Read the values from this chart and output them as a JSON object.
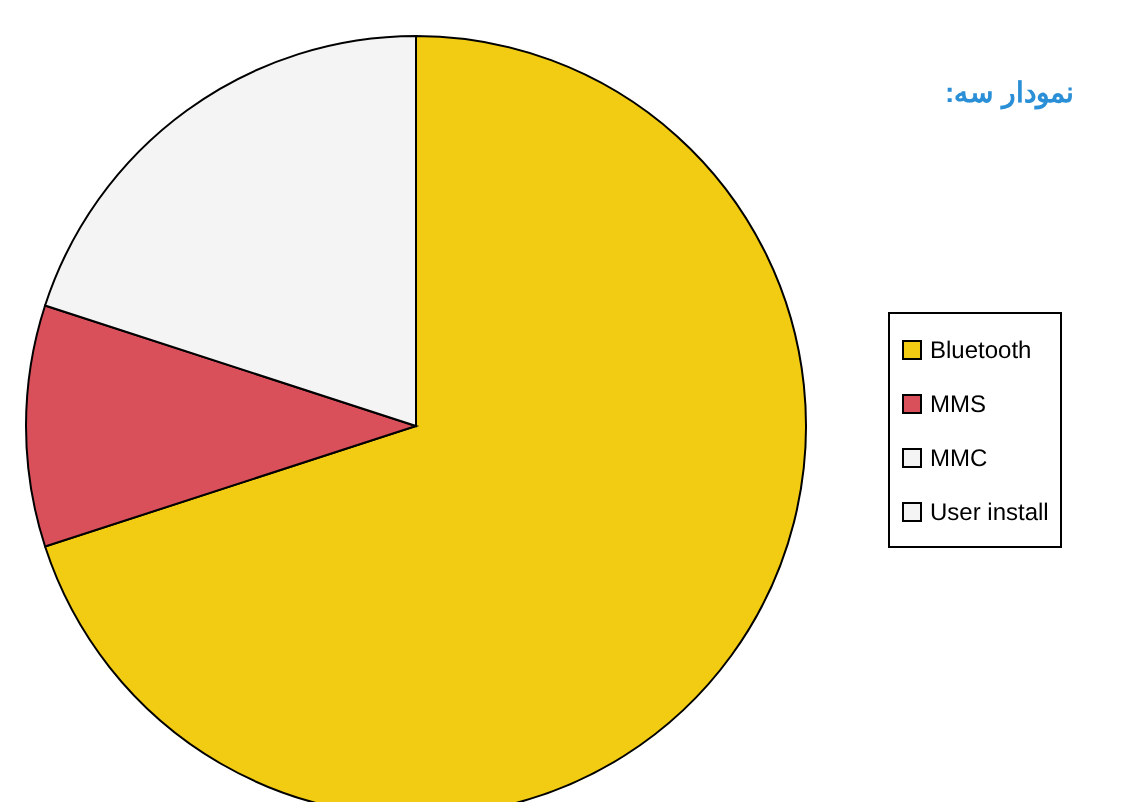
{
  "chart_data": {
    "type": "pie",
    "title": "نمودار سه:",
    "categories": [
      "Bluetooth",
      "MMS",
      "MMC",
      "User install"
    ],
    "values": [
      70,
      10,
      20,
      0
    ],
    "colors": [
      "#f2cc12",
      "#d9505a",
      "#f4f4f4",
      "#f4f4f4"
    ],
    "legend": "right"
  }
}
